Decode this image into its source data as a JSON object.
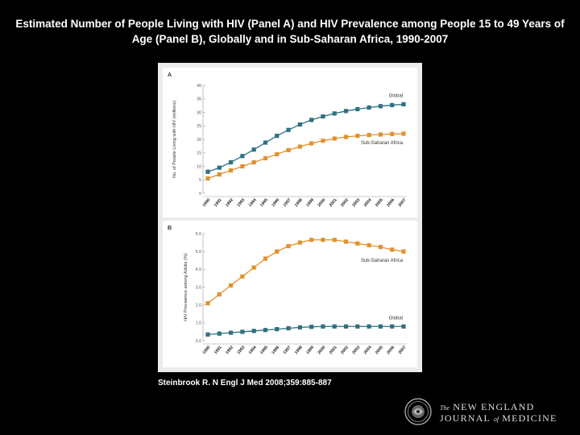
{
  "slide": {
    "title": "Estimated Number of People Living with HIV (Panel A) and HIV Prevalence among People 15 to 49 Years of Age (Panel B), Globally and in Sub-Saharan Africa, 1990-2007",
    "citation": "Steinbrook R. N Engl J Med 2008;359:885-887"
  },
  "journal": {
    "prefix": "The",
    "line1": "NEW ENGLAND",
    "line2_a": "JOURNAL",
    "line2_of": "of",
    "line2_b": "MEDICINE"
  },
  "colors": {
    "global": "#2f7082",
    "ssa": "#e0922e"
  },
  "chart_data": [
    {
      "type": "line",
      "panel": "A",
      "title": "",
      "xlabel": "",
      "ylabel": "No. of People Living with HIV (millions)",
      "ylim": [
        0,
        40
      ],
      "yticks": [
        "0",
        "5",
        "10",
        "15",
        "20",
        "25",
        "30",
        "35",
        "40"
      ],
      "x": [
        "1990",
        "1991",
        "1992",
        "1993",
        "1994",
        "1995",
        "1996",
        "1997",
        "1998",
        "1999",
        "2000",
        "2001",
        "2002",
        "2003",
        "2004",
        "2005",
        "2006",
        "2007"
      ],
      "series": [
        {
          "name": "Global",
          "values": [
            8,
            9.5,
            11.5,
            13.8,
            16.2,
            18.8,
            21.3,
            23.5,
            25.5,
            27.2,
            28.5,
            29.6,
            30.5,
            31.2,
            31.8,
            32.3,
            32.7,
            33.0
          ]
        },
        {
          "name": "Sub-Saharan Africa",
          "values": [
            5.5,
            7.0,
            8.5,
            10.0,
            11.5,
            13.0,
            14.5,
            16.0,
            17.3,
            18.5,
            19.5,
            20.3,
            20.9,
            21.3,
            21.6,
            21.8,
            22.0,
            22.1
          ]
        }
      ],
      "grid": false,
      "legend": "labels at right end of each line"
    },
    {
      "type": "line",
      "panel": "B",
      "title": "",
      "xlabel": "",
      "ylabel": "HIV Prevalence among Adults (%)",
      "ylim": [
        0,
        6
      ],
      "yticks": [
        "0.0",
        "1.0",
        "2.0",
        "3.0",
        "4.0",
        "5.0",
        "6.0"
      ],
      "x": [
        "1990",
        "1991",
        "1992",
        "1993",
        "1994",
        "1995",
        "1996",
        "1997",
        "1998",
        "1999",
        "2000",
        "2001",
        "2002",
        "2003",
        "2004",
        "2005",
        "2006",
        "2007"
      ],
      "series": [
        {
          "name": "Sub-Saharan Africa",
          "values": [
            2.1,
            2.6,
            3.1,
            3.6,
            4.1,
            4.6,
            5.0,
            5.3,
            5.5,
            5.65,
            5.65,
            5.65,
            5.55,
            5.45,
            5.35,
            5.25,
            5.1,
            5.0
          ]
        },
        {
          "name": "Global",
          "values": [
            0.35,
            0.4,
            0.45,
            0.5,
            0.55,
            0.6,
            0.65,
            0.7,
            0.75,
            0.78,
            0.8,
            0.8,
            0.8,
            0.8,
            0.8,
            0.8,
            0.8,
            0.8
          ]
        }
      ],
      "grid": false,
      "legend": "labels at right end of each line"
    }
  ]
}
